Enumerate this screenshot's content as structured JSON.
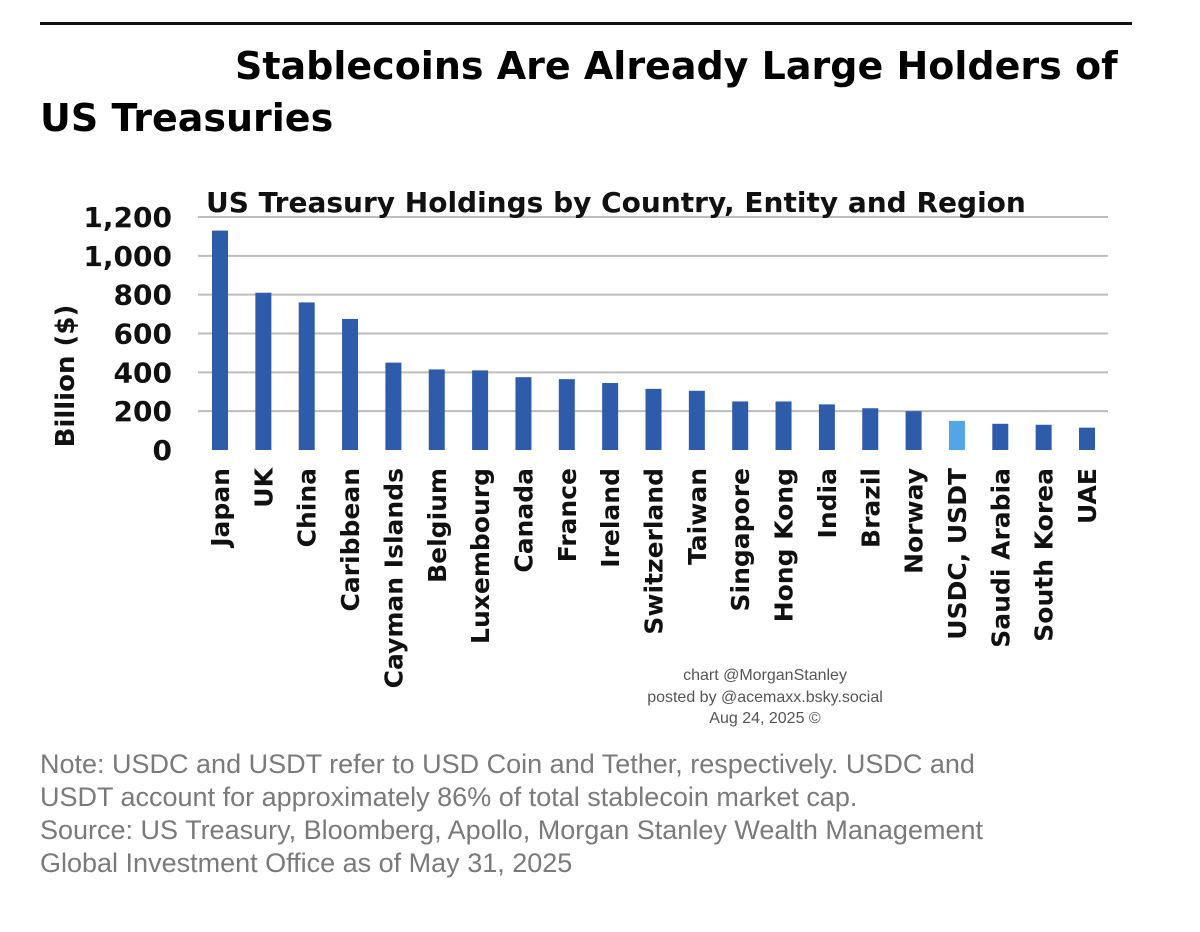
{
  "header": {
    "title": "Stablecoins Are Already Large Holders of US Treasuries"
  },
  "chart_data": {
    "type": "bar",
    "title": "US Treasury Holdings by Country, Entity and Region",
    "xlabel": "",
    "ylabel": "Billion ($)",
    "ylim": [
      0,
      1200
    ],
    "yticks": [
      "0",
      "200",
      "400",
      "600",
      "800",
      "1,000",
      "1,200"
    ],
    "grid": true,
    "categories": [
      "Japan",
      "UK",
      "China",
      "Caribbean",
      "Cayman Islands",
      "Belgium",
      "Luxembourg",
      "Canada",
      "France",
      "Ireland",
      "Switzerland",
      "Taiwan",
      "Singapore",
      "Hong Kong",
      "India",
      "Brazil",
      "Norway",
      "USDC, USDT",
      "Saudi Arabia",
      "South Korea",
      "UAE"
    ],
    "values": [
      1130,
      810,
      760,
      675,
      450,
      415,
      410,
      375,
      365,
      345,
      315,
      305,
      250,
      250,
      235,
      215,
      200,
      150,
      135,
      130,
      115
    ],
    "colors": {
      "default": "#2e5cab",
      "highlight": "#53a6e6",
      "highlight_category": "USDC, USDT",
      "grid": "#bdbdbd"
    }
  },
  "credits": {
    "line1": "chart @MorganStanley",
    "line2": "posted by @acemaxx.bsky.social",
    "line3": "Aug 24, 2025 ©"
  },
  "note": {
    "line1": "Note: USDC and USDT refer to USD Coin and Tether, respectively. USDC and",
    "line2": "USDT account for approximately 86% of total stablecoin market cap.",
    "line3": "Source: US Treasury, Bloomberg, Apollo, Morgan Stanley Wealth Management",
    "line4": "Global Investment Office as of May 31, 2025"
  }
}
